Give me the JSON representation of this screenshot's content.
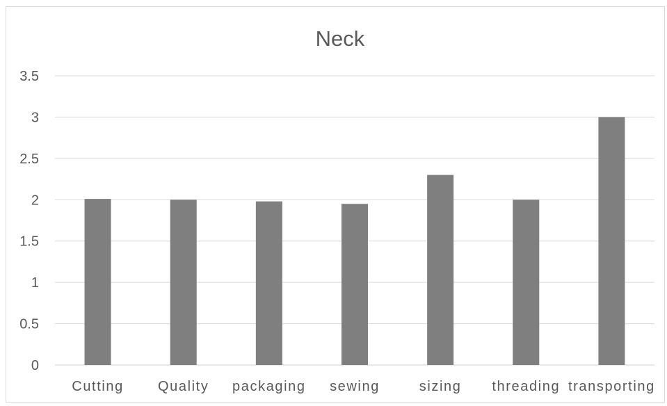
{
  "chart_data": {
    "type": "bar",
    "title": "Neck",
    "xlabel": "",
    "ylabel": "",
    "categories": [
      "Cutting",
      "Quality",
      "packaging",
      "sewing",
      "sizing",
      "threading",
      "transporting"
    ],
    "values": [
      2.01,
      2.0,
      1.98,
      1.95,
      2.3,
      2.0,
      3.0
    ],
    "ylim": [
      0,
      3.5
    ],
    "yticks": [
      "0",
      "0.5",
      "1",
      "1.5",
      "2",
      "2.5",
      "3",
      "3.5"
    ],
    "bar_color": "#7f7f7f",
    "grid": true,
    "legend": "none"
  }
}
